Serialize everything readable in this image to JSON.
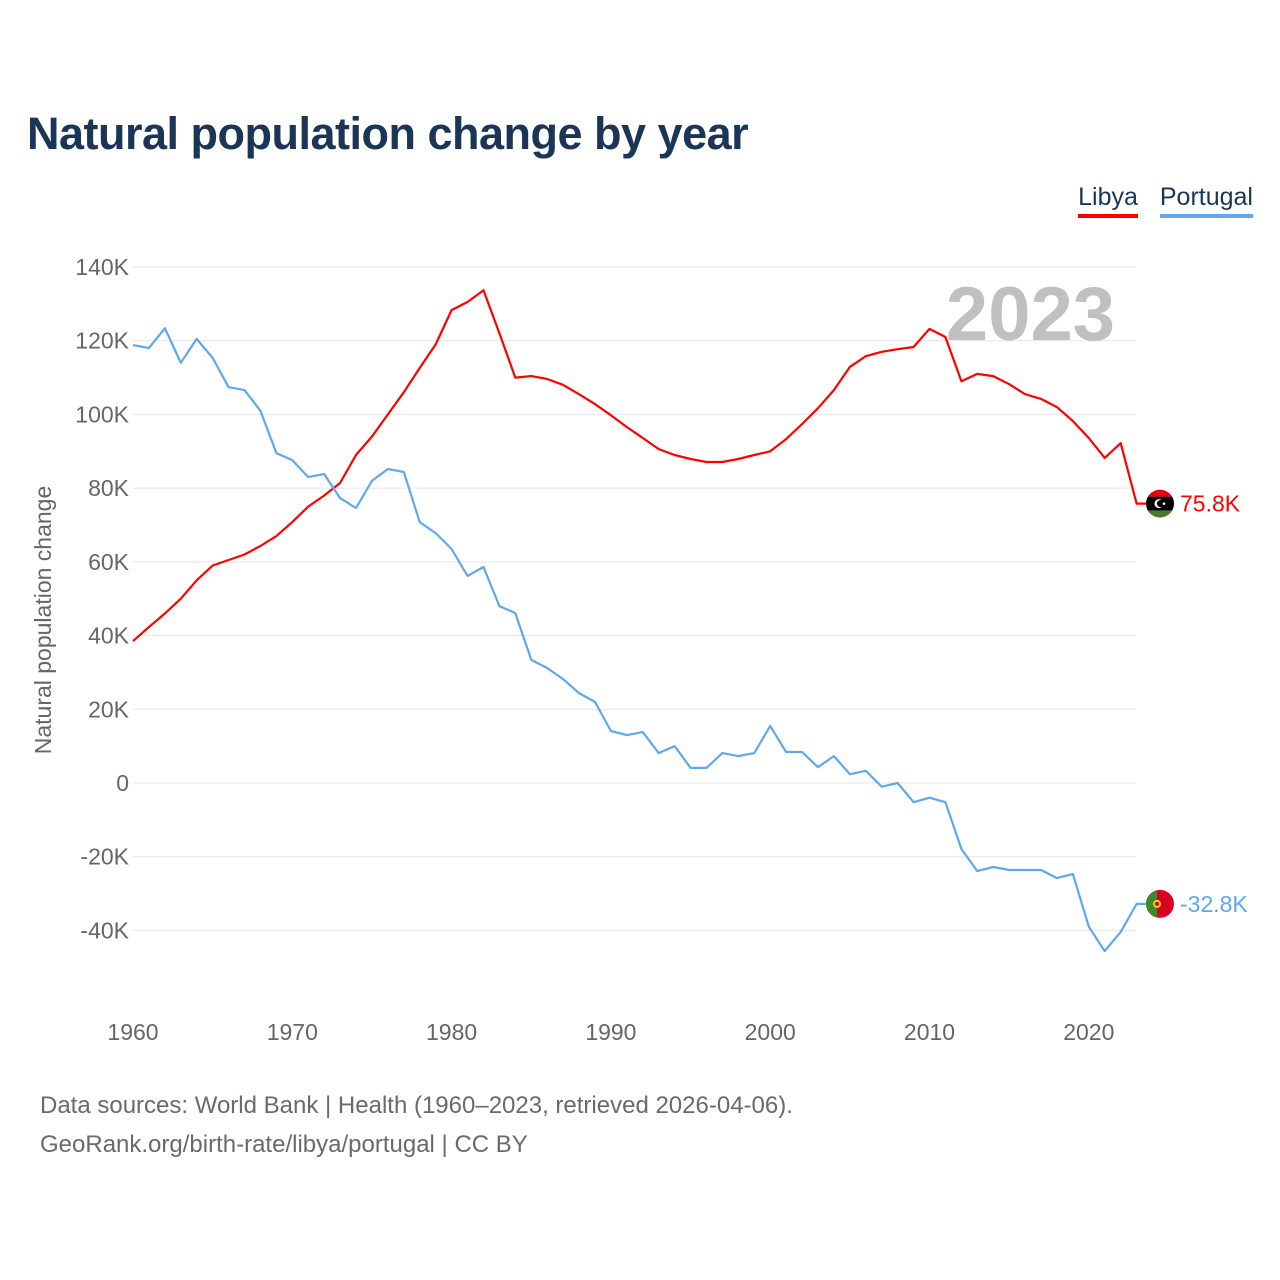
{
  "title": "Natural population change by year",
  "legend": [
    {
      "label": "Libya",
      "color": "#ff0000"
    },
    {
      "label": "Portugal",
      "color": "#5fa8ea"
    }
  ],
  "footer": {
    "line1": "Data sources: World Bank | Health (1960–2023, retrieved 2026-04-06).",
    "line2": "GeoRank.org/birth-rate/libya/portugal | CC BY"
  },
  "chart_data": {
    "type": "line",
    "title": "Natural population change by year",
    "xlabel": "",
    "ylabel": "Natural population change",
    "year_watermark": "2023",
    "xlim": [
      1960,
      2023
    ],
    "ylim": [
      -60000,
      140000
    ],
    "x_ticks": [
      1960,
      1970,
      1980,
      1990,
      2000,
      2010,
      2020
    ],
    "y_ticks": [
      -40000,
      -20000,
      0,
      20000,
      40000,
      60000,
      80000,
      100000,
      120000,
      140000
    ],
    "y_tick_labels": [
      "-40K",
      "-20K",
      "0",
      "20K",
      "40K",
      "60K",
      "80K",
      "100K",
      "120K",
      "140K"
    ],
    "grid": true,
    "legend_position": "top-right",
    "x": [
      1960,
      1961,
      1962,
      1963,
      1964,
      1965,
      1966,
      1967,
      1968,
      1969,
      1970,
      1971,
      1972,
      1973,
      1974,
      1975,
      1976,
      1977,
      1978,
      1979,
      1980,
      1981,
      1982,
      1983,
      1984,
      1985,
      1986,
      1987,
      1988,
      1989,
      1990,
      1991,
      1992,
      1993,
      1994,
      1995,
      1996,
      1997,
      1998,
      1999,
      2000,
      2001,
      2002,
      2003,
      2004,
      2005,
      2006,
      2007,
      2008,
      2009,
      2010,
      2011,
      2012,
      2013,
      2014,
      2015,
      2016,
      2017,
      2018,
      2019,
      2020,
      2021,
      2022,
      2023
    ],
    "series": [
      {
        "name": "Libya",
        "color": "#ff0000",
        "end_label": "75.8K",
        "values": [
          38500,
          42300,
          46000,
          50000,
          55000,
          59000,
          60500,
          62000,
          64300,
          67000,
          70800,
          75000,
          78000,
          81400,
          89000,
          94000,
          100000,
          106000,
          112600,
          119000,
          128300,
          130500,
          133700,
          122000,
          110000,
          110400,
          109600,
          108000,
          105500,
          102800,
          99800,
          96600,
          93600,
          90600,
          89000,
          87900,
          87100,
          87100,
          87900,
          89000,
          90000,
          93300,
          97400,
          101700,
          106600,
          112900,
          115800,
          117000,
          117700,
          118300,
          123200,
          121000,
          109000,
          111000,
          110400,
          108200,
          105500,
          104200,
          102000,
          98200,
          93600,
          88200,
          92200,
          75800
        ]
      },
      {
        "name": "Portugal",
        "color": "#5fa8ea",
        "end_label": "-32.8K",
        "values": [
          118800,
          118000,
          123400,
          114000,
          120500,
          115300,
          107400,
          106600,
          101000,
          89500,
          87600,
          83000,
          83800,
          77300,
          74600,
          82000,
          85200,
          84400,
          70800,
          67800,
          63500,
          56200,
          58600,
          48000,
          46100,
          33400,
          31200,
          28200,
          24400,
          22000,
          14100,
          13000,
          13800,
          8100,
          10000,
          4100,
          4100,
          8100,
          7300,
          8100,
          15500,
          8400,
          8400,
          4300,
          7300,
          2400,
          3300,
          -1000,
          0,
          -5200,
          -4000,
          -5200,
          -17900,
          -23900,
          -22800,
          -23600,
          -23600,
          -23600,
          -25800,
          -24700,
          -39000,
          -45600,
          -40400,
          -32800
        ]
      }
    ]
  }
}
